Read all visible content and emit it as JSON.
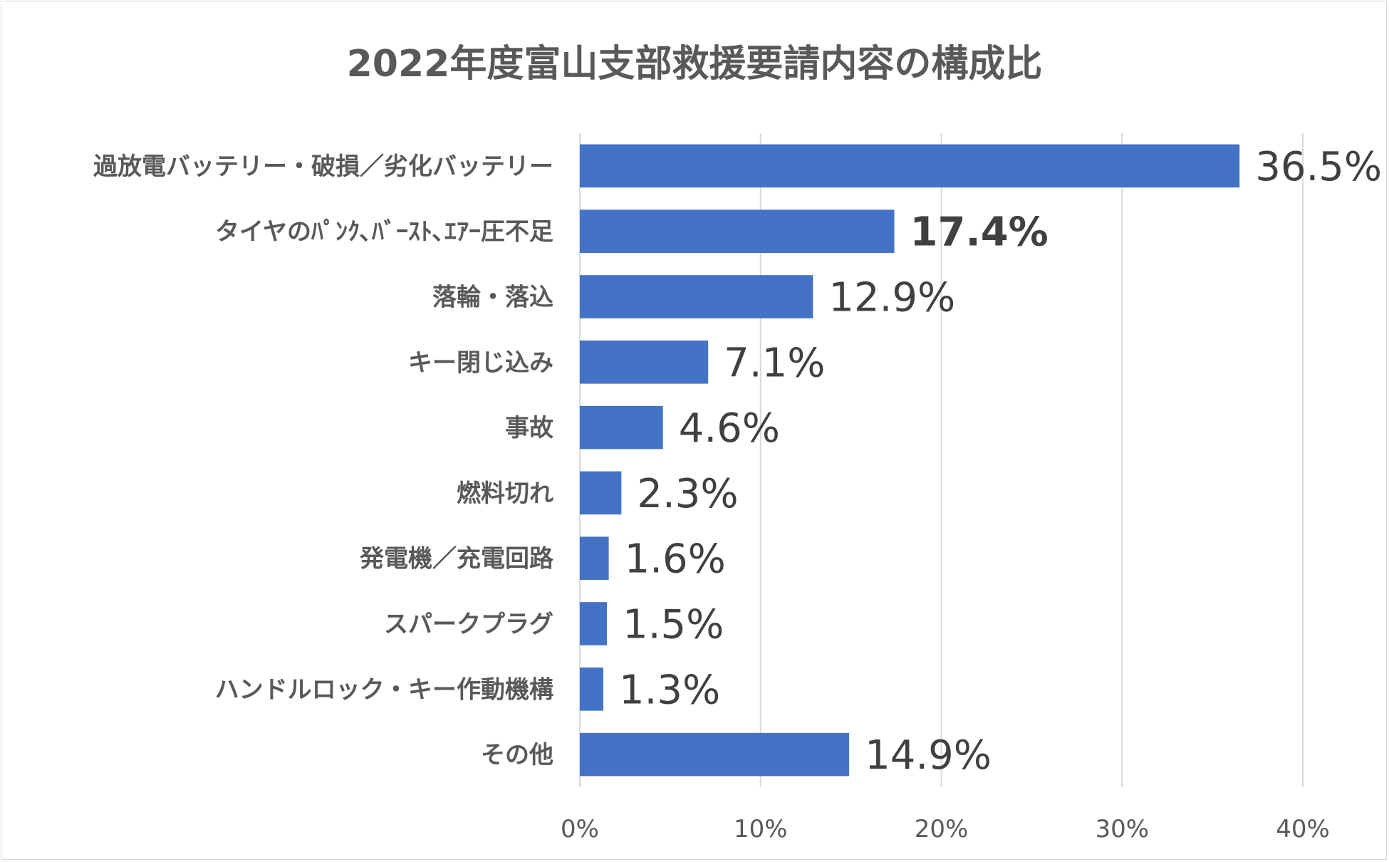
{
  "chart_data": {
    "type": "bar",
    "orientation": "horizontal",
    "title": "2022年度富山支部救援要請内容の構成比",
    "categories": [
      "過放電バッテリー・破損／劣化バッテリー",
      "タイヤのﾊﾟﾝｸ､ﾊﾞｰｽﾄ､ｴｱｰ圧不足",
      "落輪・落込",
      "キー閉じ込み",
      "事故",
      "燃料切れ",
      "発電機／充電回路",
      "スパークプラグ",
      "ハンドルロック・キー作動機構",
      "その他"
    ],
    "values": [
      36.5,
      17.4,
      12.9,
      7.1,
      4.6,
      2.3,
      1.6,
      1.5,
      1.3,
      14.9
    ],
    "value_labels": [
      "36.5%",
      "17.4%",
      "12.9%",
      "7.1%",
      "4.6%",
      "2.3%",
      "1.6%",
      "1.5%",
      "1.3%",
      "14.9%"
    ],
    "bold_value_index": 1,
    "xlim": [
      0,
      40
    ],
    "x_ticks": [
      0,
      10,
      20,
      30,
      40
    ],
    "x_tick_labels": [
      "0%",
      "10%",
      "20%",
      "30%",
      "40%"
    ],
    "grid": true,
    "legend": "none",
    "bar_color": "#4472c4"
  }
}
